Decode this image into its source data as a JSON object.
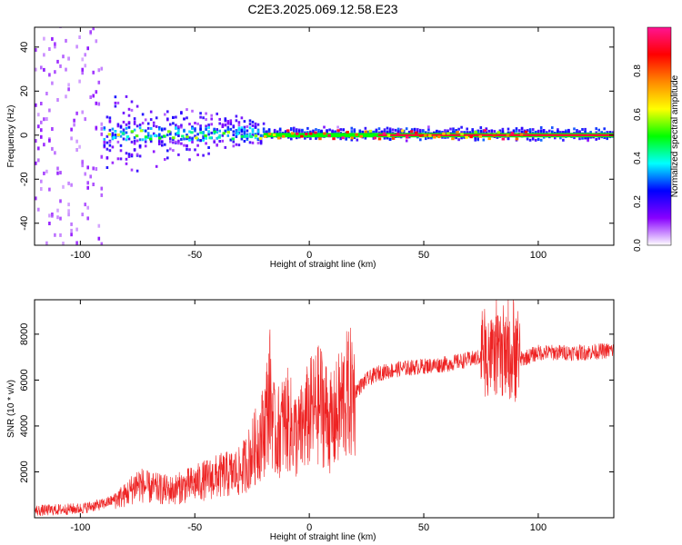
{
  "figure_title": "C2E3.2025.069.12.58.E23",
  "colors": {
    "snr_line": "#ee2222",
    "axis": "#000000"
  },
  "chart_data": [
    {
      "type": "heatmap",
      "xlabel": "Height of straight line (km)",
      "ylabel": "Frequency (Hz)",
      "xlim": [
        -120,
        133
      ],
      "ylim": [
        -50,
        49
      ],
      "xticks": [
        -100,
        -50,
        0,
        50,
        100
      ],
      "yticks": [
        -40,
        -20,
        0,
        20,
        40
      ],
      "grid": false,
      "colorbar": {
        "label": "Normalized spectral amplitude",
        "range": [
          0,
          1
        ],
        "ticks": [
          "0.0",
          "0.2",
          "0.4",
          "0.6",
          "0.8"
        ],
        "colormap": [
          "#ffffff",
          "#8800ff",
          "#0000ff",
          "#00ffff",
          "#00ff00",
          "#ffff00",
          "#ff8800",
          "#ff0000",
          "#ff1493"
        ]
      },
      "carrier_frequency": 0,
      "description_regions": [
        {
          "x_range": [
            -120,
            -90
          ],
          "pattern": "broad scattered noise",
          "amplitude": 0.1
        },
        {
          "x_range": [
            -90,
            -20
          ],
          "pattern": "spread signal around 0 Hz",
          "amplitude": 0.3
        },
        {
          "x_range": [
            -20,
            133
          ],
          "pattern": "narrow line at 0 Hz",
          "amplitude": 0.9
        }
      ]
    },
    {
      "type": "line",
      "xlabel": "Height of straight line (km)",
      "ylabel": "SNR (10 * v/v)",
      "xlim": [
        -120,
        133
      ],
      "ylim": [
        0,
        9500
      ],
      "xticks": [
        -100,
        -50,
        0,
        50,
        100
      ],
      "yticks": [
        2000,
        4000,
        6000,
        8000
      ],
      "grid": false,
      "series": [
        {
          "x": [
            -120,
            -110,
            -100,
            -90,
            -80,
            -75,
            -70,
            -60,
            -50,
            -40,
            -30,
            -25,
            -20,
            -17,
            -15,
            -10,
            -5,
            0,
            5,
            10,
            15,
            20,
            25,
            30,
            40,
            50,
            60,
            70,
            75,
            80,
            85,
            90,
            95,
            100,
            110,
            120,
            133
          ],
          "y": [
            300,
            350,
            400,
            600,
            1000,
            1500,
            1300,
            1200,
            1500,
            1800,
            2000,
            2800,
            3800,
            5500,
            3500,
            4300,
            3500,
            4500,
            5000,
            4000,
            5200,
            5500,
            6000,
            6300,
            6500,
            6600,
            6700,
            6900,
            7000,
            7100,
            7000,
            6800,
            7000,
            7200,
            7200,
            7200,
            7300
          ]
        }
      ]
    }
  ]
}
